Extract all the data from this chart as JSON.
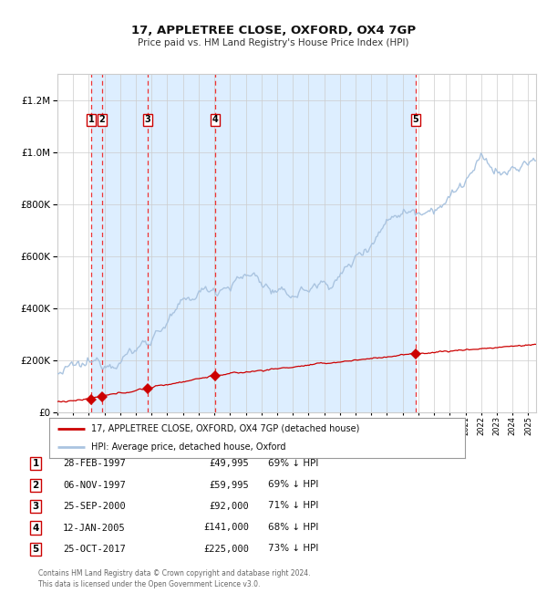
{
  "title": "17, APPLETREE CLOSE, OXFORD, OX4 7GP",
  "subtitle": "Price paid vs. HM Land Registry's House Price Index (HPI)",
  "legend_line1": "17, APPLETREE CLOSE, OXFORD, OX4 7GP (detached house)",
  "legend_line2": "HPI: Average price, detached house, Oxford",
  "sales": [
    {
      "num": 1,
      "date_num": 1997.15,
      "price": 49995,
      "label": "28-FEB-1997",
      "price_str": "£49,995",
      "hpi": "69% ↓ HPI"
    },
    {
      "num": 2,
      "date_num": 1997.84,
      "price": 59995,
      "label": "06-NOV-1997",
      "price_str": "£59,995",
      "hpi": "69% ↓ HPI"
    },
    {
      "num": 3,
      "date_num": 2000.73,
      "price": 92000,
      "label": "25-SEP-2000",
      "price_str": "£92,000",
      "hpi": "71% ↓ HPI"
    },
    {
      "num": 4,
      "date_num": 2005.03,
      "price": 141000,
      "label": "12-JAN-2005",
      "price_str": "£141,000",
      "hpi": "68% ↓ HPI"
    },
    {
      "num": 5,
      "date_num": 2017.81,
      "price": 225000,
      "label": "25-OCT-2017",
      "price_str": "£225,000",
      "hpi": "73% ↓ HPI"
    }
  ],
  "hpi_color": "#aac4e0",
  "price_color": "#cc0000",
  "vline_color": "#ee3333",
  "band_color": "#ddeeff",
  "grid_color": "#cccccc",
  "bg_color": "#ffffff",
  "footer": "Contains HM Land Registry data © Crown copyright and database right 2024.\nThis data is licensed under the Open Government Licence v3.0.",
  "ylim": [
    0,
    1300000
  ],
  "xlim": [
    1995.0,
    2025.5
  ]
}
